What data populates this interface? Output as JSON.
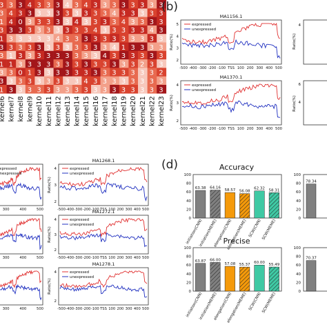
{
  "panel_labels": {
    "b": "(b)",
    "d": "(d)"
  },
  "colors": {
    "expressed": "#e03030",
    "unexpressed": "#2030c0",
    "initiation": "#808080",
    "elongation": "#f59a0a",
    "scw": "#3fc9a4",
    "heat_dark": "#a3161a",
    "heat_light": "#f7c8bc"
  },
  "heatmap": {
    "columns": [
      "kernel6",
      "kernel7",
      "kernel8",
      "kernel9",
      "kernel10",
      "kernel11",
      "kernel12",
      "kernel13",
      "kernel14",
      "kernel15",
      "kernel16",
      "kernel17",
      "kernel18",
      "kernel19",
      "kernel20",
      "kernel21",
      "kernel22",
      "kernel23"
    ],
    "rows": [
      [
        "3",
        "3",
        "3",
        "4",
        "3",
        "3",
        "3",
        "4",
        "3",
        "4",
        "3",
        "3",
        "3",
        "3",
        "3",
        "3",
        "3",
        "3"
      ],
      [
        "3",
        "4",
        "3",
        "3",
        "3",
        "3",
        "3",
        "3",
        "3",
        "3",
        "3",
        "3",
        "4",
        "3",
        "3",
        "3",
        "3",
        "3"
      ],
      [
        "1",
        "4",
        "0",
        "3",
        "3",
        "3",
        "3",
        "3",
        "4",
        "3",
        "3",
        "3",
        "3",
        "4",
        "3",
        "3",
        "3",
        "3"
      ],
      [
        "3",
        "3",
        "3",
        "3",
        "3",
        "3",
        "3",
        "3",
        "3",
        "3",
        "4",
        "3",
        "3",
        "3",
        "3",
        "3",
        "4",
        "3"
      ],
      [
        "1",
        "3",
        "3",
        "3",
        "3",
        "3",
        "4",
        "3",
        "3",
        "3",
        "3",
        "3",
        "3",
        "3",
        "3",
        "3",
        "3",
        "3"
      ],
      [
        "3",
        "3",
        "3",
        "3",
        "3",
        "3",
        "3",
        "3",
        "3",
        "3",
        "3",
        "3",
        "4",
        "1",
        "3",
        "3",
        "3",
        "3"
      ],
      [
        "3",
        "1",
        "3",
        "3",
        "3",
        "3",
        "3",
        "3",
        "3",
        "3",
        "3",
        "4",
        "3",
        "3",
        "3",
        "3",
        "3",
        "3"
      ],
      [
        "1",
        "1",
        "3",
        "3",
        "3",
        "3",
        "3",
        "3",
        "3",
        "3",
        "3",
        "3",
        "3",
        "3",
        "3",
        "2",
        "3",
        "3"
      ],
      [
        "3",
        "3",
        "0",
        "1",
        "3",
        "3",
        "3",
        "3",
        "3",
        "3",
        "3",
        "3",
        "3",
        "3",
        "3",
        "3",
        "3",
        "2"
      ],
      [
        "3",
        "3",
        "3",
        "3",
        "3",
        "3",
        "3",
        "3",
        "3",
        "4",
        "3",
        "3",
        "3",
        "3",
        "3",
        "3",
        "3",
        "3"
      ],
      [
        "1",
        "3",
        "3",
        "3",
        "3",
        "3",
        "3",
        "3",
        "3",
        "3",
        "3",
        "3",
        "3",
        "3",
        "3",
        "3",
        "3",
        "3"
      ]
    ]
  },
  "motif_plots": {
    "legend": [
      "expressed",
      "unexpressed"
    ],
    "ylabel": "Ratio(%)",
    "x_ticks": [
      "-500",
      "-400",
      "-300",
      "-200",
      "-100",
      "TSS",
      "100",
      "200",
      "300",
      "400",
      "500"
    ],
    "bottom_x_ticks": [
      "-500",
      "-400",
      "-300",
      "-200",
      "-100",
      "TSS",
      "100",
      "200",
      "300",
      "400",
      "500"
    ],
    "partial_x_ticks": [
      "200",
      "300",
      "400",
      "500"
    ],
    "b_top": {
      "title": "MA1156.1",
      "y_ticks": [
        "5",
        "4",
        "3",
        "2"
      ]
    },
    "b_mid": {
      "title": "MA1370.1",
      "y_ticks": [
        "4",
        "3",
        "2"
      ]
    },
    "c_ma1268": {
      "title": "MA1268.1",
      "y_ticks": [
        "4",
        "3",
        "2"
      ]
    },
    "c_ma1272": {
      "title": "MA1272.1",
      "y_ticks": [
        "4",
        "3",
        "2"
      ]
    },
    "c_ma1278": {
      "title": "MA1278.1",
      "y_ticks": [
        "4",
        "2"
      ]
    },
    "right_ticks": {
      "top": "4",
      "mid": "6",
      "mid2": "4"
    }
  },
  "chart_data": [
    {
      "type": "bar",
      "title": "Accuracy",
      "categories": [
        "initiation(CNN)",
        "initiation(MEME)",
        "elongation(CNN)",
        "elongation(MEME)",
        "SCW(CNN)",
        "SCW(MEME)"
      ],
      "values": [
        63.38,
        64.16,
        58.57,
        56.08,
        62.32,
        58.31
      ],
      "value_labels": [
        "63.38",
        "64.16",
        "58.57",
        "56.08",
        "62.32",
        "58.31"
      ],
      "ylim": [
        0,
        100
      ],
      "y_ticks": [
        "0",
        "20",
        "40",
        "60",
        "80",
        "100"
      ],
      "partial_value": "78.34",
      "partial_y_ticks": [
        "100",
        "80",
        "60",
        "40",
        "20",
        "0"
      ]
    },
    {
      "type": "bar",
      "title": "Precise",
      "categories": [
        "initiation(CNN)",
        "initiation(MEME)",
        "elongation(CNN)",
        "elongation(MEME)",
        "SCW(CNN)",
        "SCW(MEME)"
      ],
      "values": [
        63.87,
        66.0,
        57.08,
        55.37,
        60.0,
        55.49
      ],
      "value_labels": [
        "63.87",
        "66.00",
        "57.08",
        "55.37",
        "60.00",
        "55.49"
      ],
      "ylim": [
        0,
        100
      ],
      "y_ticks": [
        "0",
        "20",
        "40",
        "60",
        "80",
        "100"
      ],
      "partial_value": "70.37",
      "partial_y_ticks": [
        "100",
        "80",
        "60",
        "40",
        "20",
        "0"
      ]
    }
  ]
}
